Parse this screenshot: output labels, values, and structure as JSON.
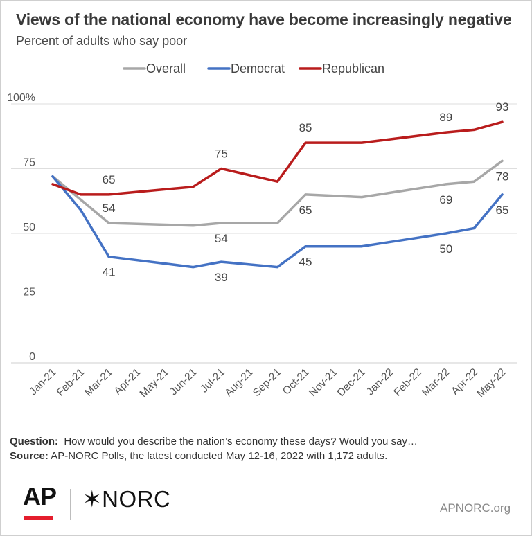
{
  "title": "Views of the national economy have become increasingly negative",
  "subtitle": "Percent of adults who say poor",
  "notes": {
    "question_label": "Question:",
    "question_text": "How would you describe the nation’s economy these days? Would you say…",
    "source_label": "Source:",
    "source_text": "AP-NORC Polls, the latest conducted May 12-16, 2022 with 1,172 adults."
  },
  "branding": {
    "ap_logo": "AP",
    "norc_logo": "✶NORC",
    "website": "APNORC.org",
    "ap_red": "#e41d2d"
  },
  "chart_data": {
    "type": "line",
    "categories": [
      "Jan-21",
      "Feb-21",
      "Mar-21",
      "Apr-21",
      "May-21",
      "Jun-21",
      "Jul-21",
      "Aug-21",
      "Sep-21",
      "Oct-21",
      "Nov-21",
      "Dec-21",
      "Jan-22",
      "Feb-22",
      "Mar-22",
      "Apr-22",
      "May-22"
    ],
    "ylim": [
      0,
      100
    ],
    "yticks": [
      0,
      25,
      50,
      75,
      100
    ],
    "ytick_labels": [
      "0",
      "25",
      "50",
      "75",
      "100%"
    ],
    "grid": true,
    "legend_position": "top-center",
    "series": [
      {
        "name": "Overall",
        "color": "#a7a7a7",
        "points": [
          [
            0,
            72
          ],
          [
            1,
            63
          ],
          [
            2,
            54
          ],
          [
            5,
            53
          ],
          [
            6,
            54
          ],
          [
            8,
            54
          ],
          [
            9,
            65
          ],
          [
            11,
            64
          ],
          [
            14,
            69
          ],
          [
            15,
            70
          ],
          [
            16,
            78
          ]
        ],
        "labels": [
          {
            "index": 2,
            "text": "54",
            "pos": "above"
          },
          {
            "index": 6,
            "text": "54",
            "pos": "below"
          },
          {
            "index": 9,
            "text": "65",
            "pos": "below"
          },
          {
            "index": 14,
            "text": "69",
            "pos": "below"
          },
          {
            "index": 16,
            "text": "78",
            "pos": "below"
          }
        ]
      },
      {
        "name": "Democrat",
        "color": "#4472c4",
        "points": [
          [
            0,
            72
          ],
          [
            1,
            59
          ],
          [
            2,
            41
          ],
          [
            5,
            37
          ],
          [
            6,
            39
          ],
          [
            8,
            37
          ],
          [
            9,
            45
          ],
          [
            11,
            45
          ],
          [
            14,
            50
          ],
          [
            15,
            52
          ],
          [
            16,
            65
          ]
        ],
        "labels": [
          {
            "index": 2,
            "text": "41",
            "pos": "below"
          },
          {
            "index": 6,
            "text": "39",
            "pos": "below"
          },
          {
            "index": 9,
            "text": "45",
            "pos": "below"
          },
          {
            "index": 14,
            "text": "50",
            "pos": "below"
          },
          {
            "index": 16,
            "text": "65",
            "pos": "below"
          }
        ]
      },
      {
        "name": "Republican",
        "color": "#b91c1c",
        "points": [
          [
            0,
            69
          ],
          [
            1,
            65
          ],
          [
            2,
            65
          ],
          [
            5,
            68
          ],
          [
            6,
            75
          ],
          [
            8,
            70
          ],
          [
            9,
            85
          ],
          [
            11,
            85
          ],
          [
            14,
            89
          ],
          [
            15,
            90
          ],
          [
            16,
            93
          ]
        ],
        "labels": [
          {
            "index": 2,
            "text": "65",
            "pos": "above"
          },
          {
            "index": 6,
            "text": "75",
            "pos": "above"
          },
          {
            "index": 9,
            "text": "85",
            "pos": "above"
          },
          {
            "index": 14,
            "text": "89",
            "pos": "above"
          },
          {
            "index": 16,
            "text": "93",
            "pos": "above"
          }
        ]
      }
    ]
  }
}
